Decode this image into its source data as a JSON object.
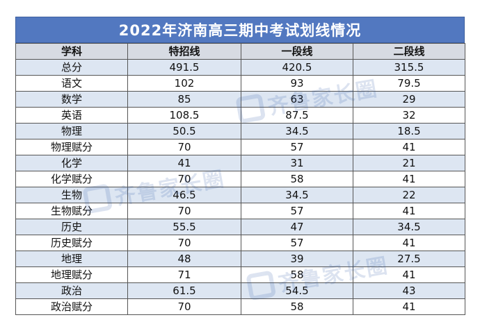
{
  "title": "2022年济南高三期中考试划线情况",
  "columns": [
    "学科",
    "特招线",
    "一段线",
    "二段线"
  ],
  "rows": [
    [
      "总分",
      "491.5",
      "420.5",
      "315.5"
    ],
    [
      "语文",
      "102",
      "93",
      "79.5"
    ],
    [
      "数学",
      "85",
      "63",
      "29"
    ],
    [
      "英语",
      "108.5",
      "87.5",
      "32"
    ],
    [
      "物理",
      "50.5",
      "34.5",
      "18.5"
    ],
    [
      "物理赋分",
      "70",
      "57",
      "41"
    ],
    [
      "化学",
      "41",
      "31",
      "21"
    ],
    [
      "化学赋分",
      "70",
      "58",
      "41"
    ],
    [
      "生物",
      "46.5",
      "34.5",
      "22"
    ],
    [
      "生物赋分",
      "70",
      "57",
      "41"
    ],
    [
      "历史",
      "55.5",
      "47",
      "34.5"
    ],
    [
      "历史赋分",
      "70",
      "57",
      "41"
    ],
    [
      "地理",
      "48",
      "39",
      "27.5"
    ],
    [
      "地理赋分",
      "71",
      "58",
      "41"
    ],
    [
      "政治",
      "61.5",
      "54.5",
      "43"
    ],
    [
      "政治赋分",
      "70",
      "58",
      "41"
    ]
  ],
  "watermark": "齐鲁家长圈",
  "colors": {
    "title_bg": "#5278c0",
    "header_bg": "#d7dbe3",
    "stripe": "#dde6f2"
  }
}
